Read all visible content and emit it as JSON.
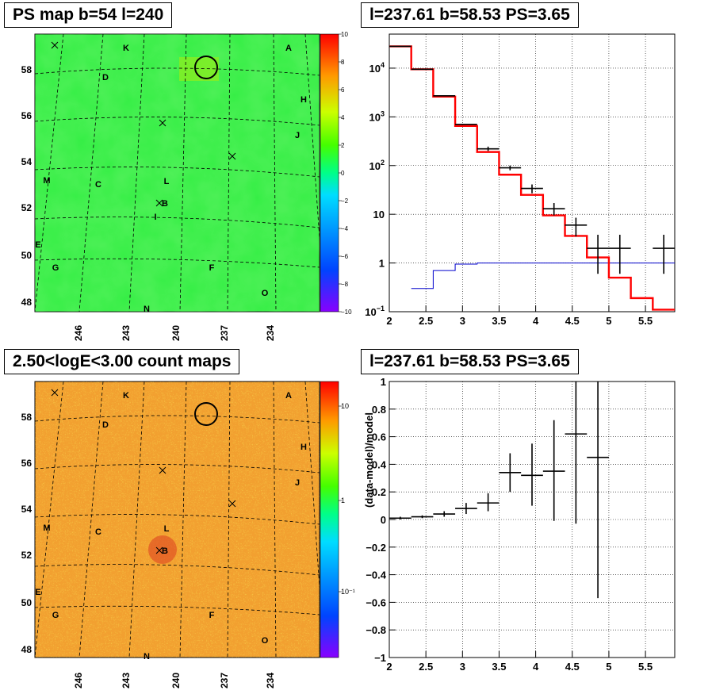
{
  "titles": {
    "ps_map": "PS map b=54 l=240",
    "spectrum": "l=237.61 b=58.53 PS=3.65",
    "count_map": "2.50<logE<3.00 count maps",
    "residual": "l=237.61 b=58.53 PS=3.65"
  },
  "colors": {
    "data": "#000000",
    "model": "#ff0000",
    "background": "#0000cc",
    "map_ps": "#33ee44",
    "map_counts": "#f2a030"
  },
  "chart_data": [
    {
      "type": "heatmap",
      "panel": "ps_map",
      "title": "PS map b=54 l=240",
      "xticks": [
        "246",
        "243",
        "240",
        "237",
        "234"
      ],
      "yticks": [
        "48",
        "50",
        "52",
        "54",
        "56",
        "58"
      ],
      "colorbar": {
        "range": [
          -10,
          10
        ],
        "ticks": [
          "10",
          "8",
          "6",
          "4",
          "2",
          "0",
          "−2",
          "−4",
          "−6",
          "−8",
          "−10"
        ]
      },
      "source_labels": [
        "A",
        "K",
        "D",
        "H",
        "J",
        "M",
        "C",
        "L",
        "B",
        "I",
        "E",
        "G",
        "F",
        "O",
        "N"
      ],
      "circle_marker": "l=237.61 b=58.53",
      "grid": "dashed galactic grid"
    },
    {
      "type": "line",
      "panel": "spectrum",
      "title": "l=237.61 b=58.53 PS=3.65",
      "xlim": [
        2.0,
        5.9
      ],
      "xticks": [
        "2",
        "2.5",
        "3",
        "3.5",
        "4",
        "4.5",
        "5",
        "5.5"
      ],
      "yscale": "log",
      "ylim": [
        0.1,
        50000
      ],
      "yticks": [
        {
          "base": "10",
          "exp": "4",
          "value": 10000
        },
        {
          "base": "10",
          "exp": "3",
          "value": 1000
        },
        {
          "base": "10",
          "exp": "2",
          "value": 100
        },
        {
          "base": "10",
          "exp": "",
          "value": 10
        },
        {
          "base": "1",
          "exp": "",
          "value": 1
        },
        {
          "base": "10",
          "exp": "−1",
          "value": 0.1
        }
      ],
      "grid": true,
      "data_points": [
        {
          "x0": 2.0,
          "x1": 2.3,
          "y": 28000,
          "ylo": 28000,
          "yhi": 28000
        },
        {
          "x0": 2.3,
          "x1": 2.6,
          "y": 9500,
          "ylo": 9500,
          "yhi": 9500
        },
        {
          "x0": 2.6,
          "x1": 2.9,
          "y": 2700,
          "ylo": 2700,
          "yhi": 2700
        },
        {
          "x0": 2.9,
          "x1": 3.2,
          "y": 700,
          "ylo": 700,
          "yhi": 700
        },
        {
          "x0": 3.2,
          "x1": 3.5,
          "y": 220,
          "ylo": 200,
          "yhi": 245
        },
        {
          "x0": 3.5,
          "x1": 3.8,
          "y": 90,
          "ylo": 80,
          "yhi": 100
        },
        {
          "x0": 3.8,
          "x1": 4.1,
          "y": 34,
          "ylo": 27,
          "yhi": 41
        },
        {
          "x0": 4.1,
          "x1": 4.4,
          "y": 13,
          "ylo": 9.5,
          "yhi": 17
        },
        {
          "x0": 4.4,
          "x1": 4.7,
          "y": 6,
          "ylo": 3.5,
          "yhi": 8.5
        },
        {
          "x0": 4.7,
          "x1": 5.0,
          "y": 2,
          "ylo": 0.6,
          "yhi": 3.8
        },
        {
          "x0": 5.0,
          "x1": 5.3,
          "y": 2,
          "ylo": 0.6,
          "yhi": 3.8
        },
        {
          "x0": 5.6,
          "x1": 5.9,
          "y": 2,
          "ylo": 0.6,
          "yhi": 3.8
        }
      ],
      "model_steps": {
        "edges": [
          2.0,
          2.3,
          2.6,
          2.9,
          3.2,
          3.5,
          3.8,
          4.1,
          4.4,
          4.7,
          5.0,
          5.3,
          5.6,
          5.9
        ],
        "values": [
          28000,
          9500,
          2600,
          650,
          190,
          65,
          25,
          9.5,
          3.6,
          1.3,
          0.5,
          0.19,
          0.11
        ]
      },
      "background_steps": {
        "edges": [
          2.3,
          2.6,
          2.9,
          3.2,
          5.9
        ],
        "values": [
          0.3,
          0.7,
          0.95,
          1.0
        ]
      }
    },
    {
      "type": "heatmap",
      "panel": "count_map",
      "title": "2.50<logE<3.00 count maps",
      "xticks": [
        "246",
        "243",
        "240",
        "237",
        "234"
      ],
      "yticks": [
        "48",
        "50",
        "52",
        "54",
        "56",
        "58"
      ],
      "colorbar": {
        "scale": "log",
        "ticks": [
          "10",
          "1",
          "10⁻¹"
        ]
      },
      "source_labels": [
        "A",
        "K",
        "D",
        "H",
        "J",
        "M",
        "C",
        "L",
        "B",
        "E",
        "G",
        "F",
        "O",
        "N"
      ],
      "circle_marker": "l=237.61 b=58.53",
      "grid": "dashed galactic grid"
    },
    {
      "type": "scatter",
      "panel": "residual",
      "title": "l=237.61 b=58.53 PS=3.65",
      "ylabel": "(data-model)/model",
      "xlim": [
        2.0,
        5.9
      ],
      "ylim": [
        -1.0,
        1.0
      ],
      "xticks": [
        "2",
        "2.5",
        "3",
        "3.5",
        "4",
        "4.5",
        "5",
        "5.5"
      ],
      "yticks": [
        "1",
        "0.8",
        "0.6",
        "0.4",
        "0.2",
        "0",
        "−0.2",
        "−0.4",
        "−0.6",
        "−0.8",
        "−1"
      ],
      "grid": true,
      "points": [
        {
          "x0": 2.0,
          "x1": 2.3,
          "y": 0.01,
          "ylo": 0.0,
          "yhi": 0.02
        },
        {
          "x0": 2.3,
          "x1": 2.6,
          "y": 0.02,
          "ylo": 0.01,
          "yhi": 0.03
        },
        {
          "x0": 2.6,
          "x1": 2.9,
          "y": 0.04,
          "ylo": 0.02,
          "yhi": 0.06
        },
        {
          "x0": 2.9,
          "x1": 3.2,
          "y": 0.08,
          "ylo": 0.04,
          "yhi": 0.12
        },
        {
          "x0": 3.2,
          "x1": 3.5,
          "y": 0.12,
          "ylo": 0.06,
          "yhi": 0.19
        },
        {
          "x0": 3.5,
          "x1": 3.8,
          "y": 0.34,
          "ylo": 0.2,
          "yhi": 0.48
        },
        {
          "x0": 3.8,
          "x1": 4.1,
          "y": 0.32,
          "ylo": 0.1,
          "yhi": 0.55
        },
        {
          "x0": 4.1,
          "x1": 4.4,
          "y": 0.35,
          "ylo": -0.01,
          "yhi": 0.72
        },
        {
          "x0": 4.4,
          "x1": 4.7,
          "y": 0.62,
          "ylo": -0.03,
          "yhi": 1.0
        },
        {
          "x0": 4.7,
          "x1": 5.0,
          "y": 0.45,
          "ylo": -0.57,
          "yhi": 1.0
        }
      ]
    }
  ]
}
